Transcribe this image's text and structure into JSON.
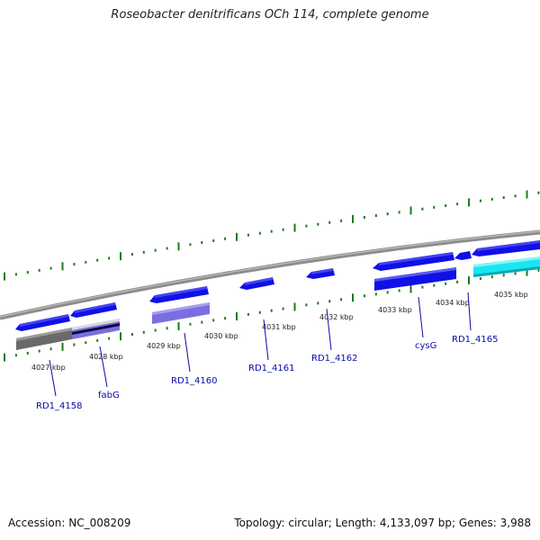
{
  "title": "Roseobacter denitrificans OCh 114, complete genome",
  "footer": {
    "accession_label": "Accession:",
    "accession": "NC_008209",
    "topology_text": "Topology: circular; Length: 4,133,097 bp; Genes: 3,988"
  },
  "colors": {
    "forward_gene": "#1010e8",
    "tick": "#1e7a1e",
    "backbone": "#8c8c8c",
    "gene_label": "#0a0aa8",
    "cyan_feature": "#19e6f0",
    "purple_feature": "#7a6ee0",
    "gray_feature": "#6a6a6a"
  },
  "kbp_labels": [
    "4027 kbp",
    "4028 kbp",
    "4029 kbp",
    "4030 kbp",
    "4031 kbp",
    "4032 kbp",
    "4033 kbp",
    "4034 kbp",
    "4035 kbp"
  ],
  "gene_labels": [
    "RD1_4158",
    "fabG",
    "RD1_4160",
    "RD1_4161",
    "RD1_4162",
    "cysG",
    "RD1_4165"
  ]
}
